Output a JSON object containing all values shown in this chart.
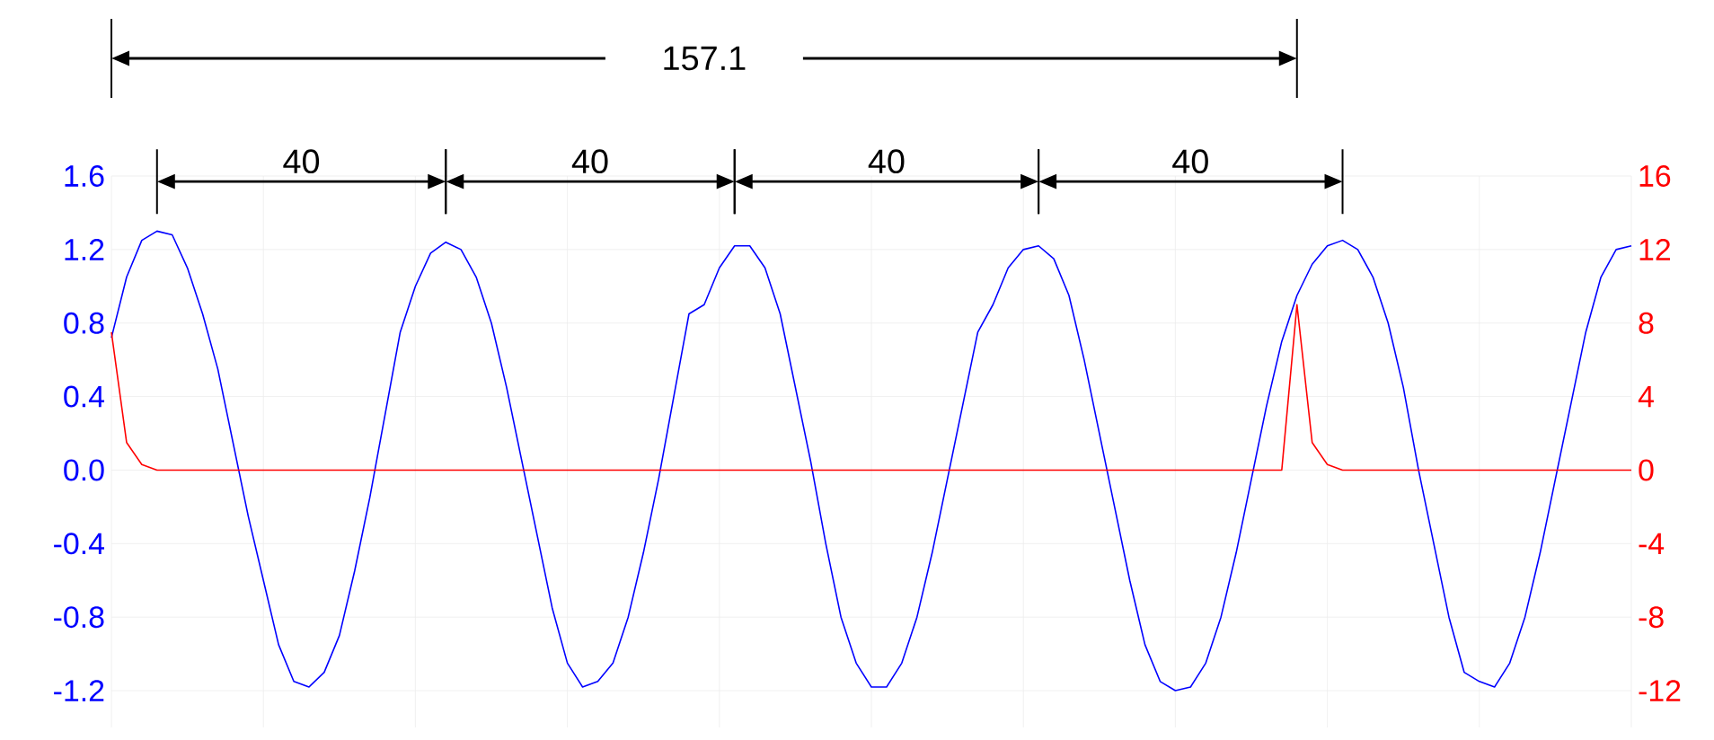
{
  "chart_data": {
    "type": "line",
    "categories": [
      null,
      null,
      null,
      null,
      null,
      null,
      null,
      null,
      null,
      null,
      null,
      null,
      null,
      null,
      null,
      null,
      null,
      null,
      null,
      null,
      null,
      null,
      null,
      null,
      null,
      null,
      null,
      null,
      null,
      null,
      null,
      null,
      null,
      null,
      null,
      null,
      null,
      null,
      null,
      null,
      null,
      null,
      null,
      null,
      null,
      null,
      null,
      null,
      null,
      null,
      null,
      null,
      null,
      null,
      null,
      null,
      null,
      null,
      null,
      null,
      null,
      null,
      null,
      null,
      null,
      null,
      null,
      null,
      null,
      null,
      null,
      null,
      null,
      null,
      null,
      null,
      null,
      null,
      null,
      null,
      null,
      null,
      null,
      null,
      null,
      null,
      null,
      null,
      null,
      null,
      null,
      null,
      null,
      null,
      null,
      null,
      null,
      null,
      null,
      null,
      null
    ],
    "series": [
      {
        "color": "#0000ff",
        "values": [
          0.72,
          1.05,
          1.25,
          1.3,
          1.28,
          1.1,
          0.85,
          0.55,
          0.15,
          -0.25,
          -0.6,
          -0.95,
          -1.15,
          -1.18,
          -1.1,
          -0.9,
          -0.55,
          -0.15,
          0.3,
          0.75,
          1.0,
          1.18,
          1.24,
          1.2,
          1.05,
          0.8,
          0.45,
          0.05,
          -0.35,
          -0.75,
          -1.05,
          -1.18,
          -1.15,
          -1.05,
          -0.8,
          -0.45,
          -0.05,
          0.4,
          0.85,
          0.9,
          1.1,
          1.22,
          1.22,
          1.1,
          0.85,
          0.45,
          0.05,
          -0.4,
          -0.8,
          -1.05,
          -1.18,
          -1.18,
          -1.05,
          -0.8,
          -0.45,
          -0.05,
          0.35,
          0.75,
          0.9,
          1.1,
          1.2,
          1.22,
          1.15,
          0.95,
          0.6,
          0.2,
          -0.2,
          -0.6,
          -0.95,
          -1.15,
          -1.2,
          -1.18,
          -1.05,
          -0.8,
          -0.45,
          -0.05,
          0.35,
          0.7,
          0.95,
          1.12,
          1.22,
          1.25,
          1.2,
          1.05,
          0.8,
          0.45,
          0.0,
          -0.4,
          -0.8,
          -1.1,
          -1.15,
          -1.18,
          -1.05,
          -0.8,
          -0.45,
          -0.05,
          0.35,
          0.75,
          1.05,
          1.2,
          1.22
        ]
      },
      {
        "color": "#ff0000",
        "axis": "y2",
        "values": [
          7.5,
          1.5,
          0.3,
          0,
          0,
          0,
          0,
          0,
          0,
          0,
          0,
          0,
          0,
          0,
          0,
          0,
          0,
          0,
          0,
          0,
          0,
          0,
          0,
          0,
          0,
          0,
          0,
          0,
          0,
          0,
          0,
          0,
          0,
          0,
          0,
          0,
          0,
          0,
          0,
          0,
          0,
          0,
          0,
          0,
          0,
          0,
          0,
          0,
          0,
          0,
          0,
          0,
          0,
          0,
          0,
          0,
          0,
          0,
          0,
          0,
          0,
          0,
          0,
          0,
          0,
          0,
          0,
          0,
          0,
          0,
          0,
          0,
          0,
          0,
          0,
          0,
          0,
          0,
          9,
          1.5,
          0.3,
          0,
          0,
          0,
          0,
          0,
          0,
          0,
          0,
          0,
          0,
          0,
          0,
          0,
          0,
          0,
          0,
          0,
          0,
          0,
          0
        ]
      }
    ],
    "ylim": [
      -1.4,
      1.6
    ],
    "yticks": [
      -1.2,
      -0.8,
      -0.4,
      {
        "value": 0,
        "label": "0.0"
      },
      0.4,
      0.8,
      1.2,
      1.6
    ],
    "y2lim": [
      -14,
      16
    ],
    "y2ticks": [
      -12,
      -8,
      -4,
      0,
      4,
      8,
      12,
      16
    ],
    "grid": true,
    "annotations": [
      "157.1",
      "40",
      "40",
      "40",
      "40"
    ]
  }
}
